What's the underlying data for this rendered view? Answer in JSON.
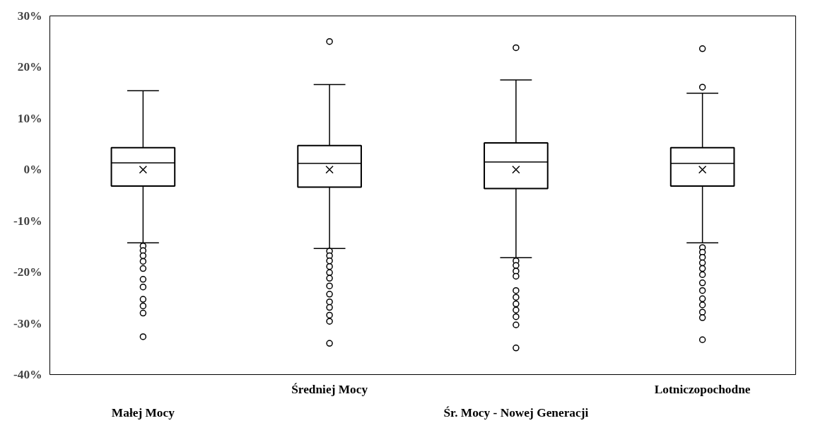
{
  "chart_data": {
    "type": "box",
    "categories": [
      "Małej Mocy",
      "Średniej Mocy",
      "Śr. Mocy - Nowej Generacji",
      "Lotniczopochodne"
    ],
    "boxes": [
      {
        "low": -14.3,
        "q1": -3.2,
        "median": 1.3,
        "q3": 4.3,
        "high": 15.4,
        "mean": 0,
        "outliers": [
          -14.9,
          -15.8,
          -16.8,
          -17.9,
          -19.3,
          -21.4,
          -22.9,
          -25.3,
          -26.6,
          -28.0,
          -32.6
        ]
      },
      {
        "low": -15.4,
        "q1": -3.4,
        "median": 1.2,
        "q3": 4.7,
        "high": 16.6,
        "mean": 0,
        "outliers": [
          25.0,
          -15.9,
          -16.8,
          -17.8,
          -18.9,
          -20.1,
          -21.2,
          -22.7,
          -24.3,
          -25.8,
          -26.9,
          -28.4,
          -29.6,
          -33.9
        ]
      },
      {
        "low": -17.2,
        "q1": -3.7,
        "median": 1.5,
        "q3": 5.2,
        "high": 17.5,
        "mean": 0,
        "outliers": [
          23.8,
          -17.8,
          -18.7,
          -19.8,
          -20.8,
          -23.6,
          -24.9,
          -26.2,
          -27.4,
          -28.7,
          -30.3,
          -34.8
        ]
      },
      {
        "low": -14.3,
        "q1": -3.2,
        "median": 1.2,
        "q3": 4.3,
        "high": 14.9,
        "mean": 0,
        "outliers": [
          23.6,
          16.1,
          -15.2,
          -16.1,
          -17.1,
          -18.2,
          -19.3,
          -20.5,
          -22.1,
          -23.6,
          -25.2,
          -26.4,
          -27.8,
          -28.9,
          -33.2
        ]
      }
    ],
    "ylim": [
      -40,
      30
    ],
    "yticks": [
      {
        "value": -40,
        "label": "-40%"
      },
      {
        "value": -30,
        "label": "-30%"
      },
      {
        "value": -20,
        "label": "-20%"
      },
      {
        "value": -10,
        "label": "-10%"
      },
      {
        "value": 0,
        "label": "0%"
      },
      {
        "value": 10,
        "label": "10%"
      },
      {
        "value": 20,
        "label": "20%"
      },
      {
        "value": 30,
        "label": "30%"
      }
    ],
    "grid": false,
    "marker": "circle"
  }
}
